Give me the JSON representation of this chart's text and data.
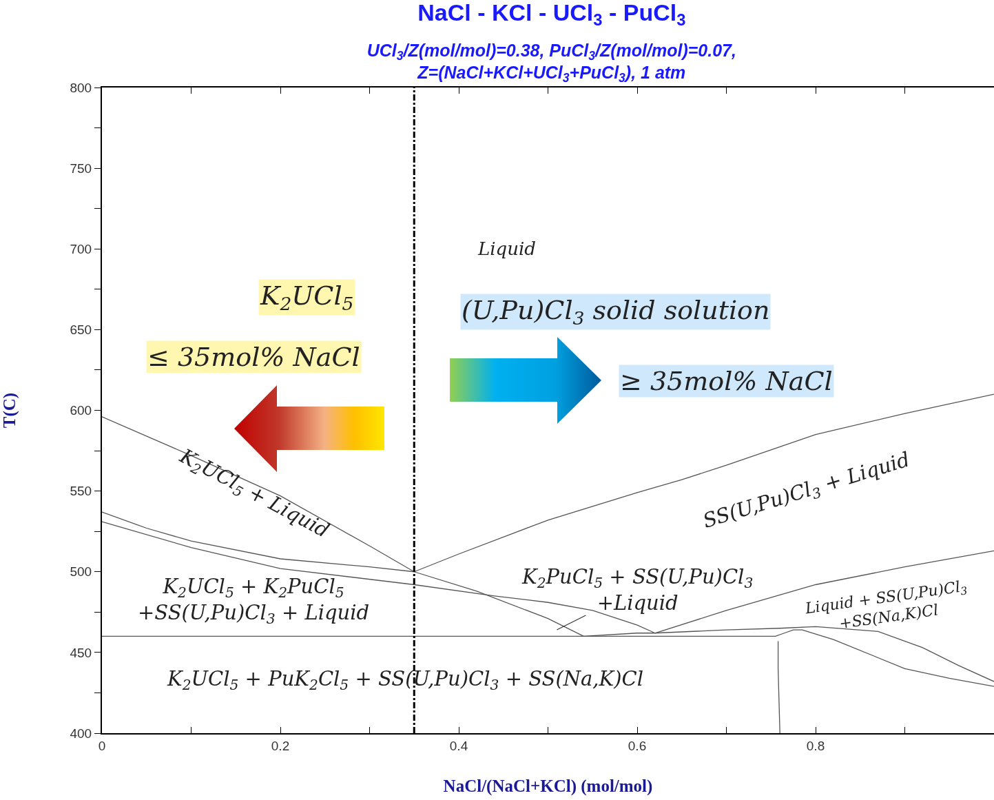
{
  "chart_data": {
    "type": "line",
    "title": "NaCl - KCl - UCl$_{3}$ - PuCl$_{3}$",
    "subtitle": "UCl$_{3}$/Z(mol/mol)=0.38, PuCl$_{3}$/Z(mol/mol)=0.07,\nZ=(NaCl+KCl+UCl$_{3}$+PuCl$_{3}$), 1 atm",
    "xlabel": "NaCl/(NaCl+KCl) (mol/mol)",
    "ylabel": "T(C)",
    "xlim": [
      0,
      1
    ],
    "ylim": [
      400,
      800
    ],
    "xticks": [
      0,
      {
        "value": 0.1,
        "label": null
      },
      0.2,
      {
        "value": 0.3,
        "label": null
      },
      0.4,
      {
        "value": 0.5,
        "label": null
      },
      0.6,
      {
        "value": 0.7,
        "label": null
      },
      0.8,
      {
        "value": 0.9,
        "label": null
      }
    ],
    "yticks": [
      400,
      {
        "value": 425,
        "label": null
      },
      450,
      {
        "value": 475,
        "label": null
      },
      500,
      {
        "value": 525,
        "label": null
      },
      550,
      {
        "value": 575,
        "label": null
      },
      600,
      {
        "value": 625,
        "label": null
      },
      650,
      {
        "value": 675,
        "label": null
      },
      700,
      {
        "value": 725,
        "label": null
      },
      750,
      {
        "value": 775,
        "label": null
      },
      800
    ],
    "grid": false,
    "marker": "none",
    "line_style": "solid",
    "series": [
      {
        "color": "#555555",
        "x": [
          0,
          0.1,
          0.2,
          0.3,
          0.35,
          0.42,
          0.5,
          0.54
        ],
        "values": [
          596,
          572,
          547,
          516,
          500,
          488,
          471,
          460
        ]
      },
      {
        "color": "#555555",
        "x": [
          0.35,
          0.4,
          0.5,
          0.6,
          0.65,
          0.7,
          0.8,
          0.9,
          1.0
        ],
        "values": [
          500,
          511,
          532,
          549,
          557,
          566,
          585,
          598,
          610
        ]
      },
      {
        "color": "#555555",
        "x": [
          0,
          0.05,
          0.1,
          0.2,
          0.3,
          0.35
        ],
        "values": [
          537,
          527,
          519,
          508,
          503,
          500
        ]
      },
      {
        "color": "#555555",
        "x": [
          0,
          0.1,
          0.2,
          0.35,
          0.44,
          0.5,
          0.55,
          0.6,
          0.62
        ],
        "values": [
          531,
          515,
          502,
          492,
          485,
          481,
          476,
          467,
          462
        ]
      },
      {
        "color": "#555555",
        "x": [
          0.54,
          0.6,
          0.62,
          0.7,
          0.76,
          0.8,
          0.87,
          0.92,
          0.96,
          1.0
        ],
        "values": [
          460,
          462,
          462,
          464,
          465,
          466,
          463,
          453,
          442,
          432
        ]
      },
      {
        "color": "#555555",
        "x": [
          0.62,
          0.7,
          0.8,
          0.9,
          1.0
        ],
        "values": [
          462,
          476,
          492,
          503,
          513
        ]
      },
      {
        "color": "#555555",
        "x": [
          0,
          0.755,
          0.765,
          0.775,
          0.785,
          0.82,
          0.9,
          0.95,
          1.0
        ],
        "values": [
          460,
          460,
          462,
          464,
          464,
          458,
          440,
          434,
          429
        ]
      },
      {
        "color": "#555555",
        "x": [
          0.76,
          0.758,
          0.758
        ],
        "values": [
          400,
          440,
          457
        ]
      }
    ],
    "ref_lines": [
      {
        "axis": "x",
        "value": 0.35,
        "color": "#000000",
        "line_style": "dashed"
      }
    ],
    "annotations": [
      "Liquid",
      "K$_{2}$UCl$_{5}$",
      "≤ 35mol% NaCl",
      "(U,Pu)Cl$_{3}$ solid solution",
      "≥ 35mol% NaCl",
      "K$_{2}$UCl$_{5}$ + Liquid",
      "SS(U,Pu)Cl$_{3}$ + Liquid",
      "K$_{2}$PuCl$_{5}$ + SS(U,Pu)Cl$_{3}$\n+Liquid",
      "K$_{2}$UCl$_{5}$ + K$_{2}$PuCl$_{5}$\n+SS(U,Pu)Cl$_{3}$ + Liquid",
      "Liquid + SS(U,Pu)Cl$_{3}$\n+SS(Na,K)Cl",
      "K$_{2}$UCl$_{5}$ + PuK$_{2}$Cl$_{5}$ + SS(U,Pu)Cl$_{3}$ + SS(Na,K)Cl"
    ]
  }
}
